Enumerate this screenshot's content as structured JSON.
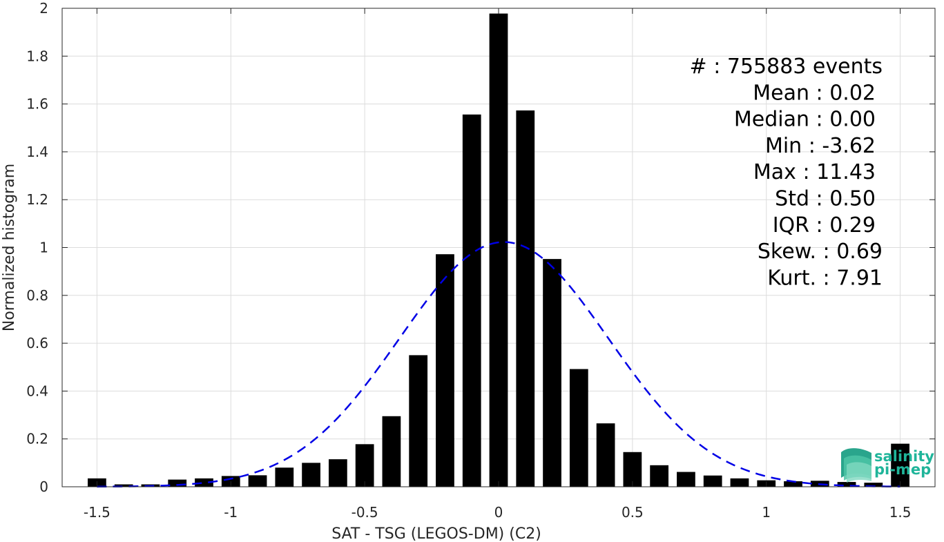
{
  "chart_data": {
    "type": "bar",
    "xlabel": "SAT - TSG (LEGOS-DM) (C2)",
    "ylabel": "Normalized histogram",
    "xlim": [
      -1.63,
      1.63
    ],
    "ylim": [
      0,
      2
    ],
    "xticks": [
      -1.5,
      -1,
      -0.5,
      0,
      0.5,
      1,
      1.5
    ],
    "xtick_labels": [
      "-1.5",
      "-1",
      "-0.5",
      "0",
      "0.5",
      "1",
      "1.5"
    ],
    "yticks": [
      0,
      0.2,
      0.4,
      0.6,
      0.8,
      1,
      1.2,
      1.4,
      1.6,
      1.8,
      2
    ],
    "ytick_labels": [
      "0",
      "0.2",
      "0.4",
      "0.6",
      "0.8",
      "1",
      "1.2",
      "1.4",
      "1.6",
      "1.8",
      "2"
    ],
    "grid": true,
    "bar_color": "#000000",
    "series": [
      {
        "x": [
          -1.5,
          -1.4,
          -1.3,
          -1.2,
          -1.1,
          -1.0,
          -0.9,
          -0.8,
          -0.7,
          -0.6,
          -0.5,
          -0.4,
          -0.3,
          -0.2,
          -0.1,
          0.0,
          0.1,
          0.2,
          0.3,
          0.4,
          0.5,
          0.6,
          0.7,
          0.8,
          0.9,
          1.0,
          1.1,
          1.2,
          1.3,
          1.4,
          1.5
        ],
        "values": [
          0.035,
          0.01,
          0.01,
          0.03,
          0.035,
          0.045,
          0.048,
          0.08,
          0.1,
          0.115,
          0.178,
          0.295,
          0.55,
          0.972,
          1.556,
          1.978,
          1.573,
          0.952,
          0.492,
          0.265,
          0.145,
          0.09,
          0.062,
          0.047,
          0.035,
          0.027,
          0.023,
          0.025,
          0.02,
          0.017,
          0.18
        ]
      }
    ],
    "fit_curve": {
      "style": "dashed",
      "color": "#0000e6",
      "mean": 0.02,
      "std": 0.39
    },
    "stats": [
      {
        "label": "#  : 755883 events"
      },
      {
        "label": "Mean : 0.02"
      },
      {
        "label": "Median : 0.00"
      },
      {
        "label": "Min : -3.62"
      },
      {
        "label": "Max : 11.43"
      },
      {
        "label": "Std : 0.50"
      },
      {
        "label": "IQR : 0.29"
      },
      {
        "label": "Skew. : 0.69"
      },
      {
        "label": "Kurt. : 7.91"
      }
    ]
  },
  "logo": {
    "line1": "salinity",
    "line2": "pi-mep",
    "color": "#1fb59a"
  }
}
